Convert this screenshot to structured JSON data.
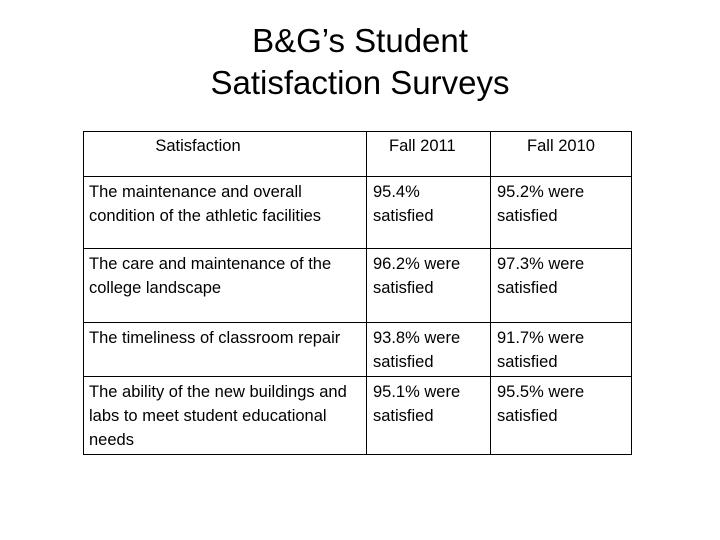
{
  "title": {
    "line1": "B&G’s Student",
    "line2": "Satisfaction Surveys"
  },
  "table": {
    "headers": [
      "Satisfaction",
      "Fall 2011",
      "Fall 2010"
    ],
    "rows": [
      {
        "item": "The maintenance and overall condition of the athletic facilities",
        "fall_2011": "95.4% satisfied",
        "fall_2010": "95.2% were satisfied"
      },
      {
        "item": "The care and maintenance of the college landscape",
        "fall_2011": "96.2% were satisfied",
        "fall_2010": "97.3% were satisfied"
      },
      {
        "item": "The timeliness of classroom repair",
        "fall_2011": "93.8% were satisfied",
        "fall_2010": "91.7% were satisfied"
      },
      {
        "item": "The ability of the new buildings and labs to meet student educational needs",
        "fall_2011": "95.1% were satisfied",
        "fall_2010": "95.5% were satisfied"
      }
    ]
  }
}
